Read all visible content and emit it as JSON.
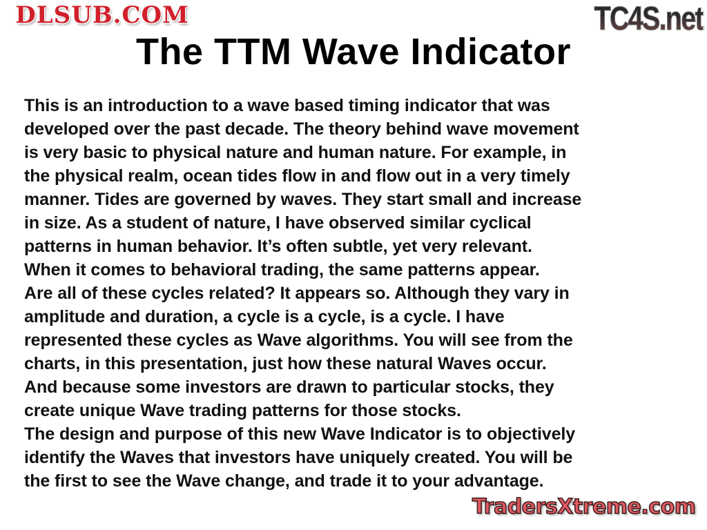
{
  "title": "The TTM Wave Indicator",
  "body_lines": [
    "This is an introduction to a wave based timing indicator that was",
    "developed over the past decade. The theory behind wave movement",
    "is very basic to physical nature and human nature. For example, in",
    "the physical realm, ocean tides flow in and flow out in a very timely",
    "manner. Tides are governed by waves. They start small and increase",
    "in size. As a student of nature, I have observed similar cyclical",
    "patterns in human behavior. It’s often subtle, yet very relevant.",
    "When it comes to behavioral trading, the same patterns appear.",
    "Are all of these cycles related? It appears so. Although they vary in",
    "amplitude and duration, a cycle is a cycle, is a cycle. I have",
    "represented these cycles as Wave algorithms. You will see from the",
    "charts, in this presentation, just how these natural Waves occur.",
    "And because some investors are drawn to particular stocks, they",
    "create unique Wave trading patterns for those stocks.",
    "The design and purpose of this new Wave Indicator is to objectively",
    "identify the Waves that investors have uniquely created. You will be",
    "the first to see the Wave change, and trade it to your advantage."
  ],
  "watermarks": {
    "top_right": "TC4S.net",
    "center": "DLSUB.COM",
    "bottom_right": "TradersXtreme.com"
  }
}
